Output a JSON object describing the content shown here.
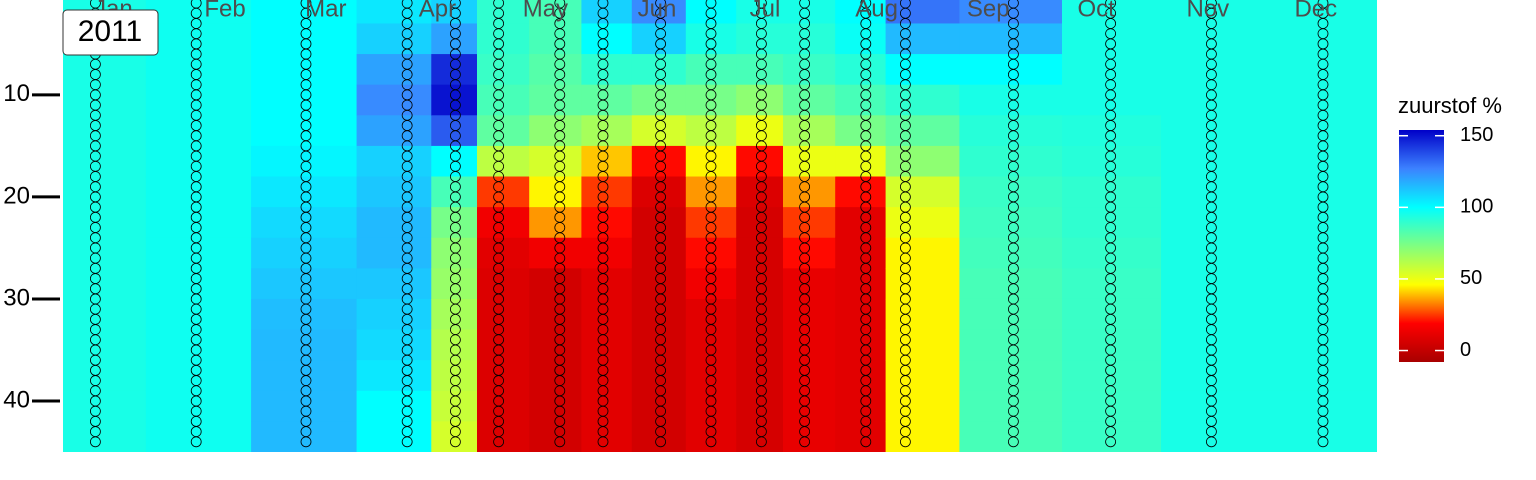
{
  "chart_data": {
    "type": "heatmap",
    "panel_label": "2011",
    "legend_title": "zuurstof %",
    "xlim": [
      1,
      366
    ],
    "xticks": [
      {
        "value": 15,
        "label": "Jan"
      },
      {
        "value": 46,
        "label": "Feb"
      },
      {
        "value": 74,
        "label": "Mar"
      },
      {
        "value": 105,
        "label": "Apr"
      },
      {
        "value": 135,
        "label": "May"
      },
      {
        "value": 166,
        "label": "Jun"
      },
      {
        "value": 196,
        "label": "Jul"
      },
      {
        "value": 227,
        "label": "Aug"
      },
      {
        "value": 258,
        "label": "Sep"
      },
      {
        "value": 288,
        "label": "Oct"
      },
      {
        "value": 319,
        "label": "Nov"
      },
      {
        "value": 349,
        "label": "Dec"
      }
    ],
    "ylim": [
      0.7,
      45
    ],
    "yticks": [
      10,
      20,
      30,
      40
    ],
    "y_reversed": true,
    "zlim": [
      -8,
      154
    ],
    "zticks": [
      0,
      50,
      100,
      150
    ],
    "colorscale": [
      "#a80000",
      "#ff0000",
      "#ffff00",
      "#80ff80",
      "#00ffff",
      "#3c82ff",
      "#0000c8"
    ],
    "sample_days": [
      10,
      38,
      68.5,
      96.6,
      110,
      122,
      139,
      151,
      167,
      181,
      195,
      207,
      224,
      235,
      265,
      292,
      320,
      351
    ],
    "sample_depths": [
      1,
      2,
      3,
      4,
      5,
      6,
      7,
      8,
      9,
      10,
      11,
      12,
      13,
      14,
      15,
      16,
      17,
      18,
      19,
      20,
      21,
      22,
      23,
      24,
      25,
      26,
      27,
      28,
      29,
      30,
      31,
      32,
      33,
      34,
      35,
      36,
      37,
      38,
      39,
      40,
      41,
      42,
      43,
      44
    ],
    "z_depths": [
      1.5,
      4.5,
      7.5,
      10.5,
      13.5,
      16.5,
      19.5,
      22.5,
      25.5,
      28.5,
      31.5,
      34.5,
      37.5,
      40.5,
      43.5
    ],
    "z": [
      [
        95,
        95,
        95,
        95,
        95,
        95,
        95,
        95,
        95,
        95,
        95,
        95,
        95,
        95,
        95
      ],
      [
        97,
        97,
        97,
        97,
        97,
        97,
        97,
        97,
        97,
        97,
        97,
        97,
        97,
        97,
        97
      ],
      [
        100,
        100,
        100,
        100,
        100,
        102,
        105,
        108,
        110,
        112,
        114,
        115,
        115,
        115,
        115
      ],
      [
        105,
        110,
        120,
        125,
        120,
        110,
        112,
        115,
        115,
        112,
        110,
        108,
        105,
        100,
        100
      ],
      [
        110,
        120,
        145,
        150,
        135,
        100,
        85,
        75,
        70,
        68,
        65,
        62,
        60,
        58,
        55
      ],
      [
        90,
        90,
        88,
        85,
        80,
        60,
        25,
        15,
        10,
        8,
        8,
        8,
        8,
        8,
        8
      ],
      [
        85,
        85,
        82,
        80,
        70,
        55,
        45,
        35,
        15,
        5,
        5,
        5,
        5,
        5,
        5
      ],
      [
        110,
        100,
        90,
        80,
        65,
        40,
        25,
        20,
        15,
        10,
        10,
        10,
        10,
        10,
        10
      ],
      [
        125,
        110,
        90,
        75,
        55,
        20,
        8,
        5,
        5,
        5,
        5,
        5,
        5,
        5,
        5
      ],
      [
        100,
        95,
        85,
        75,
        60,
        45,
        35,
        25,
        20,
        15,
        10,
        10,
        10,
        10,
        10
      ],
      [
        95,
        92,
        85,
        70,
        50,
        20,
        8,
        6,
        6,
        6,
        6,
        6,
        6,
        6,
        6
      ],
      [
        95,
        92,
        88,
        80,
        65,
        50,
        35,
        25,
        20,
        12,
        12,
        12,
        12,
        12,
        12
      ],
      [
        100,
        98,
        92,
        85,
        75,
        50,
        20,
        10,
        10,
        10,
        10,
        10,
        10,
        10,
        10
      ],
      [
        130,
        115,
        100,
        90,
        80,
        70,
        55,
        50,
        45,
        45,
        45,
        45,
        45,
        45,
        45
      ],
      [
        125,
        115,
        100,
        95,
        92,
        90,
        88,
        87,
        86,
        85,
        85,
        85,
        85,
        85,
        85
      ],
      [
        95,
        95,
        95,
        95,
        93,
        92,
        90,
        90,
        89,
        88,
        88,
        88,
        88,
        88,
        88
      ],
      [
        95,
        95,
        95,
        95,
        95,
        95,
        95,
        95,
        95,
        95,
        95,
        95,
        95,
        95,
        95
      ],
      [
        95,
        95,
        95,
        95,
        95,
        95,
        95,
        95,
        95,
        95,
        95,
        95,
        95,
        95,
        95
      ]
    ]
  }
}
